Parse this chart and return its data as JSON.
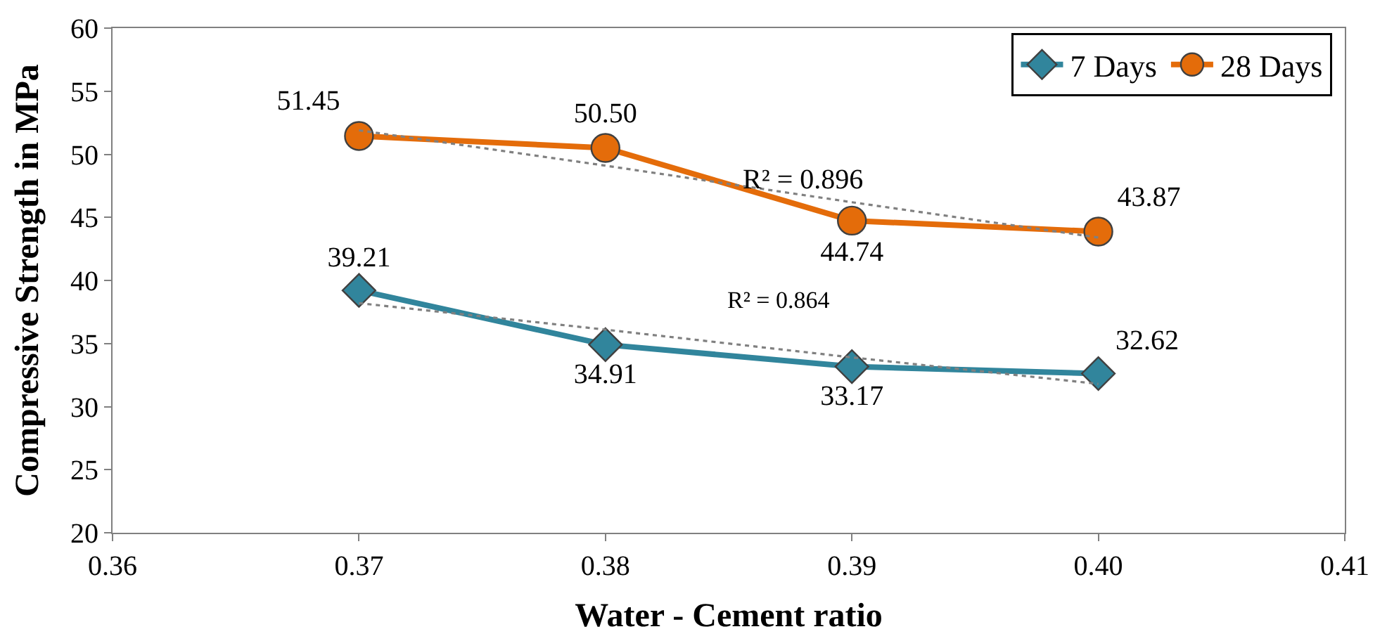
{
  "chart_data": {
    "type": "line",
    "xlabel": "Water - Cement ratio",
    "ylabel": "Compressive Strength in MPa",
    "xlim": [
      0.36,
      0.41
    ],
    "xticks": [
      {
        "value": 0.36,
        "label": "0.36"
      },
      {
        "value": 0.37,
        "label": "0.37"
      },
      {
        "value": 0.38,
        "label": "0.38"
      },
      {
        "value": 0.39,
        "label": "0.39"
      },
      {
        "value": 0.4,
        "label": "0.40"
      },
      {
        "value": 0.41,
        "label": "0.41"
      }
    ],
    "ylim": [
      20,
      60
    ],
    "yticks": [
      20,
      25,
      30,
      35,
      40,
      45,
      50,
      55,
      60
    ],
    "x": [
      0.37,
      0.38,
      0.39,
      0.4
    ],
    "series": [
      {
        "name": "7 Days",
        "color": "#31859c",
        "marker": "diamond",
        "values": [
          39.21,
          34.91,
          33.17,
          32.62
        ],
        "value_labels": [
          "39.21",
          "34.91",
          "33.17",
          "32.62"
        ]
      },
      {
        "name": "28 Days",
        "color": "#e46c0a",
        "marker": "circle",
        "values": [
          51.45,
          50.5,
          44.74,
          43.87
        ],
        "value_labels": [
          "51.45",
          "50.50",
          "44.74",
          "43.87"
        ]
      },
      {
        "type": "line",
        "color": "#808080",
        "line_style": "dotted",
        "marker": "none",
        "values": [
          38.2,
          36.1,
          33.9,
          31.8
        ]
      },
      {
        "type": "line",
        "color": "#808080",
        "line_style": "dotted",
        "marker": "none",
        "values": [
          51.9,
          49.1,
          46.2,
          43.4
        ]
      }
    ],
    "annotations": [
      "R² = 0.896",
      "R² = 0.864"
    ],
    "legend": "top right"
  }
}
